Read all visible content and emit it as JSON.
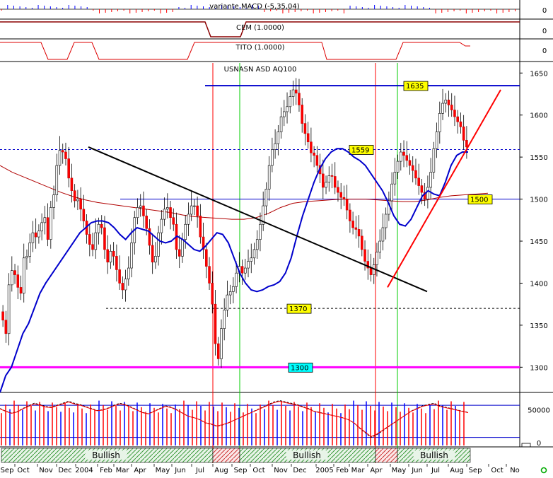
{
  "chart_data": [
    {
      "type": "bar",
      "title": "variante MACD (-5,35,04)",
      "ylabel_value": "0",
      "style": "thin red/blue histogram bars around zero"
    },
    {
      "type": "line",
      "title": "CEM (1.0000)",
      "ylabel_value": "0",
      "style": "dark red step line"
    },
    {
      "type": "line",
      "title": "TITO (1.0000)",
      "ylabel_value": "0",
      "style": "red step line"
    },
    {
      "type": "line",
      "title": "USNASN ASD AQ100",
      "x_labels": [
        "Sep",
        "Oct",
        "Nov",
        "Dec",
        "2004",
        "Feb",
        "Mar",
        "Apr",
        "May",
        "Jun",
        "Jul",
        "Aug",
        "Sep",
        "Oct",
        "Nov",
        "Dec",
        "2005",
        "Feb",
        "Mar",
        "Apr",
        "May",
        "Jun",
        "Jul",
        "Aug",
        "Sep",
        "Oct",
        "No"
      ],
      "y_ticks": [
        1300,
        1350,
        1400,
        1450,
        1500,
        1550,
        1600,
        1650
      ],
      "ylim": [
        1270,
        1662
      ],
      "grid": false,
      "horizontal_levels": [
        {
          "label": "1635",
          "value": 1635,
          "color": "#0000cc",
          "label_bg": "#ffff00"
        },
        {
          "label": "1559",
          "value": 1559,
          "color": "#0000cc",
          "style": "dashed",
          "label_bg": "#ffff00"
        },
        {
          "label": "1500",
          "value": 1500,
          "color": "#0000cc",
          "label_bg": "#ffff00"
        },
        {
          "label": "1370",
          "value": 1370,
          "color": "#000000",
          "style": "dashed",
          "label_bg": "#ffff00"
        },
        {
          "label": "1300",
          "value": 1300,
          "color": "#ff00ff",
          "label_bg": "#00ffff"
        }
      ],
      "trendlines": [
        {
          "from": {
            "x": "Jan 2004",
            "y": 1562
          },
          "to": {
            "x": "May 2005",
            "y": 1390
          },
          "color": "#000000"
        },
        {
          "from": {
            "x": "Apr 2005",
            "y": 1395
          },
          "to": {
            "x": "Sep 2005",
            "y": 1630
          },
          "color": "#ff0000"
        }
      ],
      "vertical_markers": [
        {
          "x": "Jul 2004",
          "color": "#ff0000"
        },
        {
          "x": "Sep 2004",
          "color": "#00cc00"
        },
        {
          "x": "Apr 2005",
          "color": "#ff0000"
        },
        {
          "x": "May 2005",
          "color": "#00cc00"
        }
      ],
      "series": [
        {
          "kind": "candlestick",
          "color_up": "#ffffff",
          "color_down": "#ff0000",
          "closes": [
            1356,
            1340,
            1398,
            1415,
            1410,
            1395,
            1388,
            1430,
            1432,
            1448,
            1460,
            1455,
            1462,
            1472,
            1478,
            1452,
            1490,
            1505,
            1540,
            1558,
            1556,
            1548,
            1525,
            1510,
            1498,
            1500,
            1488,
            1474,
            1458,
            1446,
            1440,
            1460,
            1470,
            1466,
            1440,
            1425,
            1438,
            1432,
            1416,
            1400,
            1392,
            1405,
            1418,
            1448,
            1478,
            1490,
            1492,
            1480,
            1465,
            1445,
            1425,
            1432,
            1460,
            1476,
            1488,
            1490,
            1478,
            1470,
            1440,
            1432,
            1452,
            1470,
            1482,
            1492,
            1492,
            1480,
            1455,
            1440,
            1420,
            1400,
            1375,
            1328,
            1310,
            1346,
            1368,
            1386,
            1390,
            1396,
            1412,
            1420,
            1412,
            1418,
            1426,
            1430,
            1440,
            1452,
            1470,
            1492,
            1512,
            1540,
            1559,
            1566,
            1580,
            1598,
            1604,
            1610,
            1622,
            1630,
            1626,
            1612,
            1590,
            1578,
            1568,
            1555,
            1552,
            1540,
            1530,
            1514,
            1520,
            1528,
            1527,
            1514,
            1508,
            1502,
            1500,
            1487,
            1474,
            1466,
            1464,
            1456,
            1440,
            1426,
            1418,
            1410,
            1422,
            1437,
            1450,
            1466,
            1482,
            1498,
            1518,
            1532,
            1545,
            1556,
            1552,
            1546,
            1540,
            1534,
            1525,
            1516,
            1508,
            1500,
            1514,
            1532,
            1560,
            1580,
            1602,
            1614,
            1618,
            1612,
            1606,
            1598,
            1592,
            1586,
            1570,
            1562
          ]
        },
        {
          "name": "blue moving average",
          "color": "#0000cc",
          "values": [
            1270,
            1290,
            1300,
            1320,
            1340,
            1352,
            1370,
            1388,
            1400,
            1410,
            1420,
            1430,
            1440,
            1450,
            1460,
            1466,
            1472,
            1474,
            1474,
            1472,
            1466,
            1458,
            1452,
            1460,
            1466,
            1464,
            1462,
            1456,
            1450,
            1448,
            1450,
            1456,
            1452,
            1446,
            1440,
            1438,
            1444,
            1452,
            1460,
            1458,
            1448,
            1430,
            1412,
            1400,
            1392,
            1390,
            1392,
            1396,
            1398,
            1402,
            1412,
            1430,
            1456,
            1480,
            1500,
            1520,
            1536,
            1548,
            1556,
            1560,
            1560,
            1556,
            1550,
            1546,
            1540,
            1530,
            1520,
            1510,
            1496,
            1480,
            1470,
            1468,
            1476,
            1490,
            1504,
            1510,
            1506,
            1504,
            1520,
            1540,
            1552,
            1556,
            1556
          ]
        },
        {
          "name": "dark red moving average",
          "color": "#b00000",
          "values": [
            1540,
            1532,
            1526,
            1520,
            1514,
            1508,
            1503,
            1499,
            1496,
            1494,
            1492,
            1490,
            1488,
            1486,
            1484,
            1481,
            1479,
            1478,
            1477,
            1476,
            1476,
            1478,
            1483,
            1490,
            1495,
            1497,
            1498,
            1499,
            1500,
            1500,
            1500,
            1499,
            1498,
            1497,
            1497,
            1499,
            1502,
            1504,
            1505,
            1506,
            1507
          ]
        }
      ]
    },
    {
      "type": "bar",
      "y_ticks": [
        0,
        50000
      ],
      "ylim": [
        0,
        70000
      ],
      "colors": {
        "bar_up": "#ff0000",
        "bar_down": "#0000ff",
        "avg_line": "#000000",
        "avg_line2": "#ff0000"
      },
      "volumes": [
        52000,
        48000,
        45000,
        47000,
        52000,
        56000,
        60000,
        58000,
        55000,
        54000,
        57000,
        60000,
        63000,
        60000,
        58000,
        55000,
        52000,
        49000,
        50000,
        53000,
        57000,
        60000,
        58000,
        54000,
        50000,
        46000,
        44000,
        48000,
        52000,
        56000,
        54000,
        50000,
        45000,
        40000,
        38000,
        35000,
        30000,
        28000,
        25000,
        27000,
        30000,
        34000,
        38000,
        42000,
        46000,
        50000,
        54000,
        58000,
        62000,
        64000,
        62000,
        60000,
        58000,
        55000,
        52000,
        48000,
        46000,
        44000,
        42000,
        40000,
        38000,
        35000,
        30000,
        22000,
        15000,
        8000,
        12000,
        18000,
        24000,
        30000,
        36000,
        42000,
        48000,
        52000,
        56000,
        58000,
        60000,
        56000,
        54000,
        52000,
        50000,
        48000,
        46000
      ]
    }
  ],
  "sentiment_strip": {
    "labels": [
      "Bullish",
      "Bullish",
      "Bullish"
    ],
    "colors": {
      "bullish": "#8cc88c",
      "bearish": "#e06060"
    }
  },
  "footer_icon": "green-circle-icon"
}
